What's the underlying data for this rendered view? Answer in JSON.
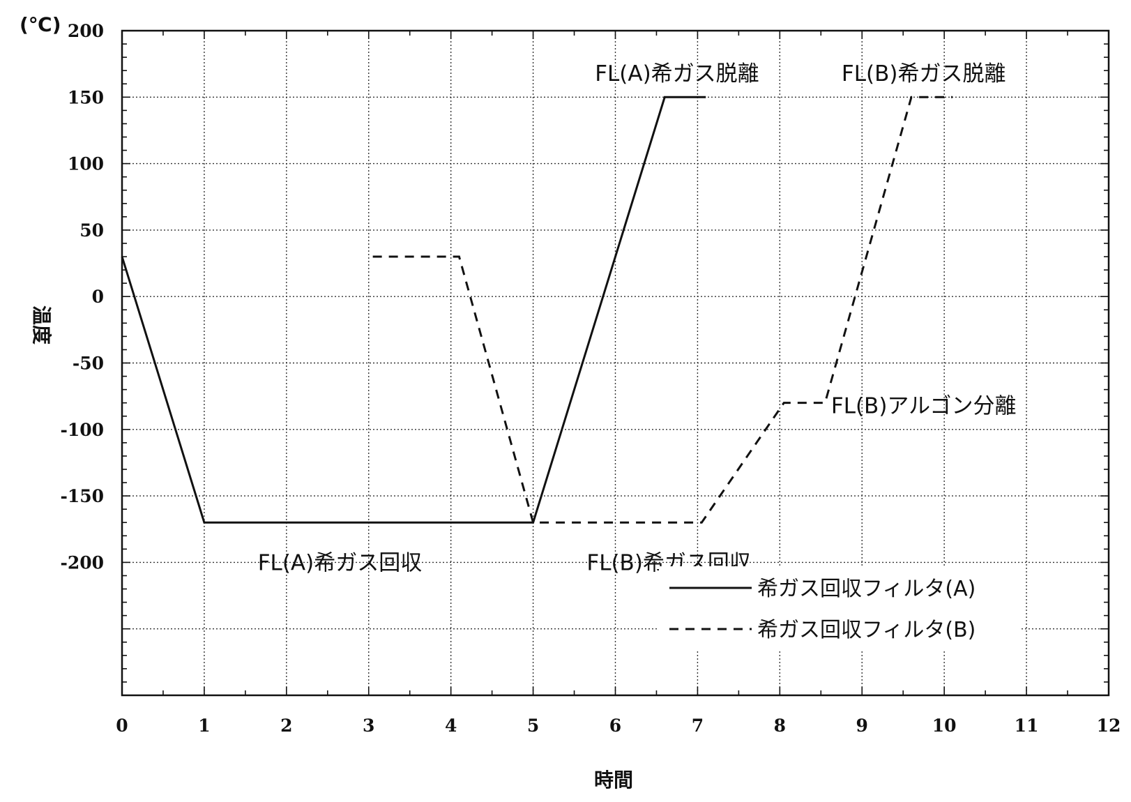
{
  "chart_data": {
    "type": "line",
    "xlabel": "時間",
    "ylabel": "温度",
    "y_unit": "(℃)",
    "xlim": [
      0,
      12
    ],
    "ylim": [
      -300,
      200
    ],
    "x_ticks": [
      0,
      1,
      2,
      3,
      4,
      5,
      6,
      7,
      8,
      9,
      10,
      11,
      12
    ],
    "y_ticks": [
      200,
      150,
      100,
      50,
      0,
      -50,
      -100,
      -150,
      -200
    ],
    "grid": true,
    "legend_position": "bottom-right",
    "series": [
      {
        "name": "希ガス回収フィルタ(A)",
        "style": "solid",
        "color": "#111111",
        "x": [
          0,
          1,
          5,
          6.6,
          7.1
        ],
        "y": [
          30,
          -170,
          -170,
          150,
          150
        ]
      },
      {
        "name": "希ガス回収フィルタ(B)",
        "style": "dashed",
        "color": "#111111",
        "x": [
          3.05,
          4.1,
          5,
          7.05,
          8.05,
          8.55,
          9.6,
          10.1
        ],
        "y": [
          30,
          30,
          -170,
          -170,
          -80,
          -80,
          150,
          150
        ]
      }
    ],
    "annotations": [
      {
        "text": "FL(A)希ガス脱離",
        "x": 6.75,
        "y": 168
      },
      {
        "text": "FL(B)希ガス脱離",
        "x": 9.75,
        "y": 168
      },
      {
        "text": "FL(B)アルゴン分離",
        "x": 9.75,
        "y": -82
      },
      {
        "text": "FL(A)希ガス回収",
        "x": 2.65,
        "y": -200
      },
      {
        "text": "FL(B)希ガス回収",
        "x": 6.65,
        "y": -200
      }
    ]
  }
}
